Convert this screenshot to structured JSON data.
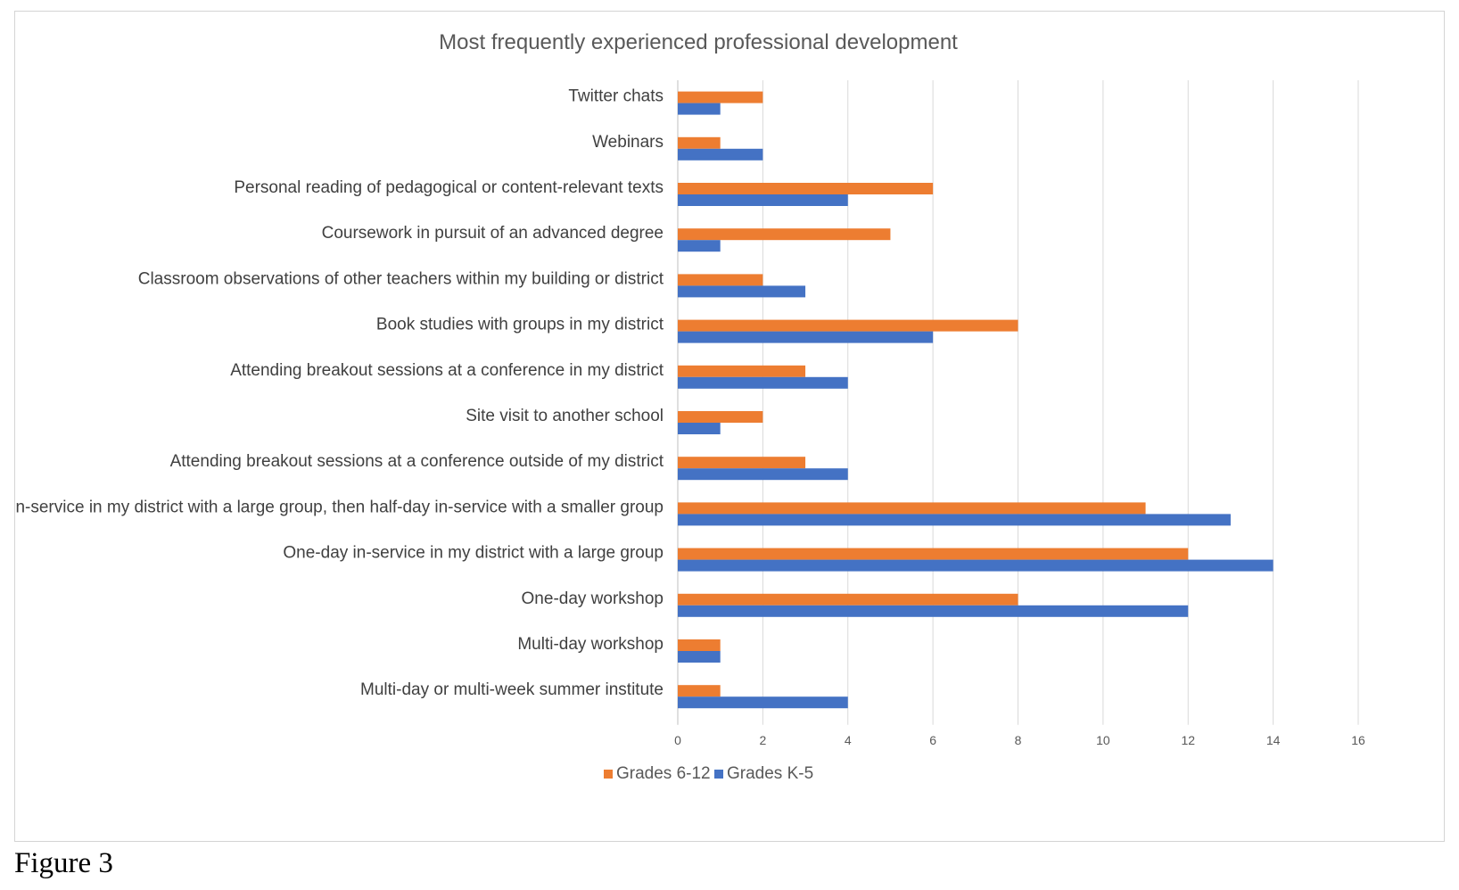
{
  "figure_caption": "Figure 3",
  "chart_data": {
    "type": "bar",
    "orientation": "horizontal",
    "title": "Most frequently experienced professional development",
    "categories": [
      "Twitter chats",
      "Webinars",
      "Personal reading of pedagogical or content-relevant texts",
      "Coursework in pursuit of an advanced degree",
      "Classroom observations of other teachers within my building or district",
      "Book studies with groups in my district",
      "Attending breakout sessions at a conference in my district",
      "Site visit to another school",
      "Attending breakout sessions at a conference outside of my district",
      "Half-day in-service in my district with a large group, then half-day in-service with a smaller group",
      "One-day in-service in my district with a large group",
      "One-day workshop",
      "Multi-day workshop",
      "Multi-day or multi-week summer institute"
    ],
    "series": [
      {
        "name": "Grades 6-12",
        "color": "#ED7D31",
        "values": [
          2,
          1,
          6,
          5,
          2,
          8,
          3,
          2,
          3,
          11,
          12,
          8,
          1,
          1
        ]
      },
      {
        "name": "Grades K-5",
        "color": "#4472C4",
        "values": [
          1,
          2,
          4,
          1,
          3,
          6,
          4,
          1,
          4,
          13,
          14,
          12,
          1,
          4
        ]
      }
    ],
    "xlim": [
      0,
      16
    ],
    "xticks": [
      0,
      2,
      4,
      6,
      8,
      10,
      12,
      14,
      16
    ],
    "grid": true,
    "gridColor": "#d9d9d9",
    "legend": "bottom",
    "xlabel": "",
    "ylabel": ""
  }
}
